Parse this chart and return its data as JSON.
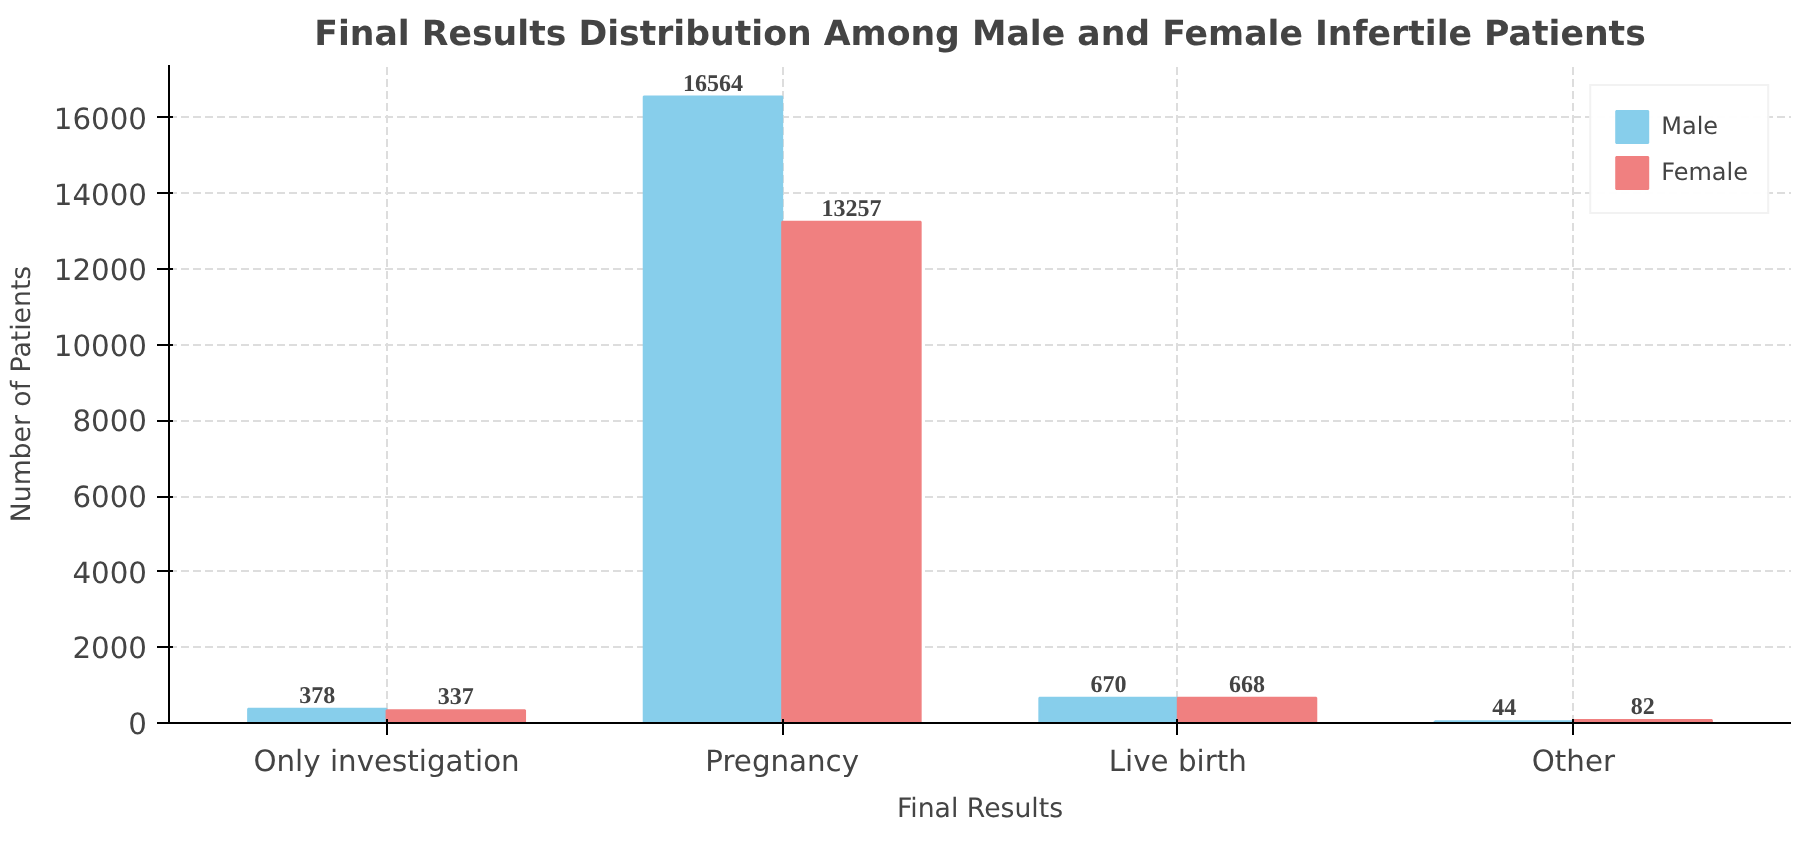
{
  "chart_data": {
    "type": "bar",
    "title": "Final Results Distribution Among Male and Female Infertile Patients",
    "xlabel": "Final Results",
    "ylabel": "Number of Patients",
    "categories": [
      "Only investigation",
      "Pregnancy",
      "Live birth",
      "Other"
    ],
    "series": [
      {
        "name": "Male",
        "color": "#87ceeb",
        "values": [
          378,
          16564,
          670,
          44
        ]
      },
      {
        "name": "Female",
        "color": "#f08080",
        "values": [
          337,
          13257,
          668,
          82
        ]
      }
    ],
    "ylim": [
      0,
      17400
    ],
    "yticks": [
      0,
      2000,
      4000,
      6000,
      8000,
      10000,
      12000,
      14000,
      16000
    ],
    "grid": true,
    "legend": "top right",
    "data_labels": true
  }
}
